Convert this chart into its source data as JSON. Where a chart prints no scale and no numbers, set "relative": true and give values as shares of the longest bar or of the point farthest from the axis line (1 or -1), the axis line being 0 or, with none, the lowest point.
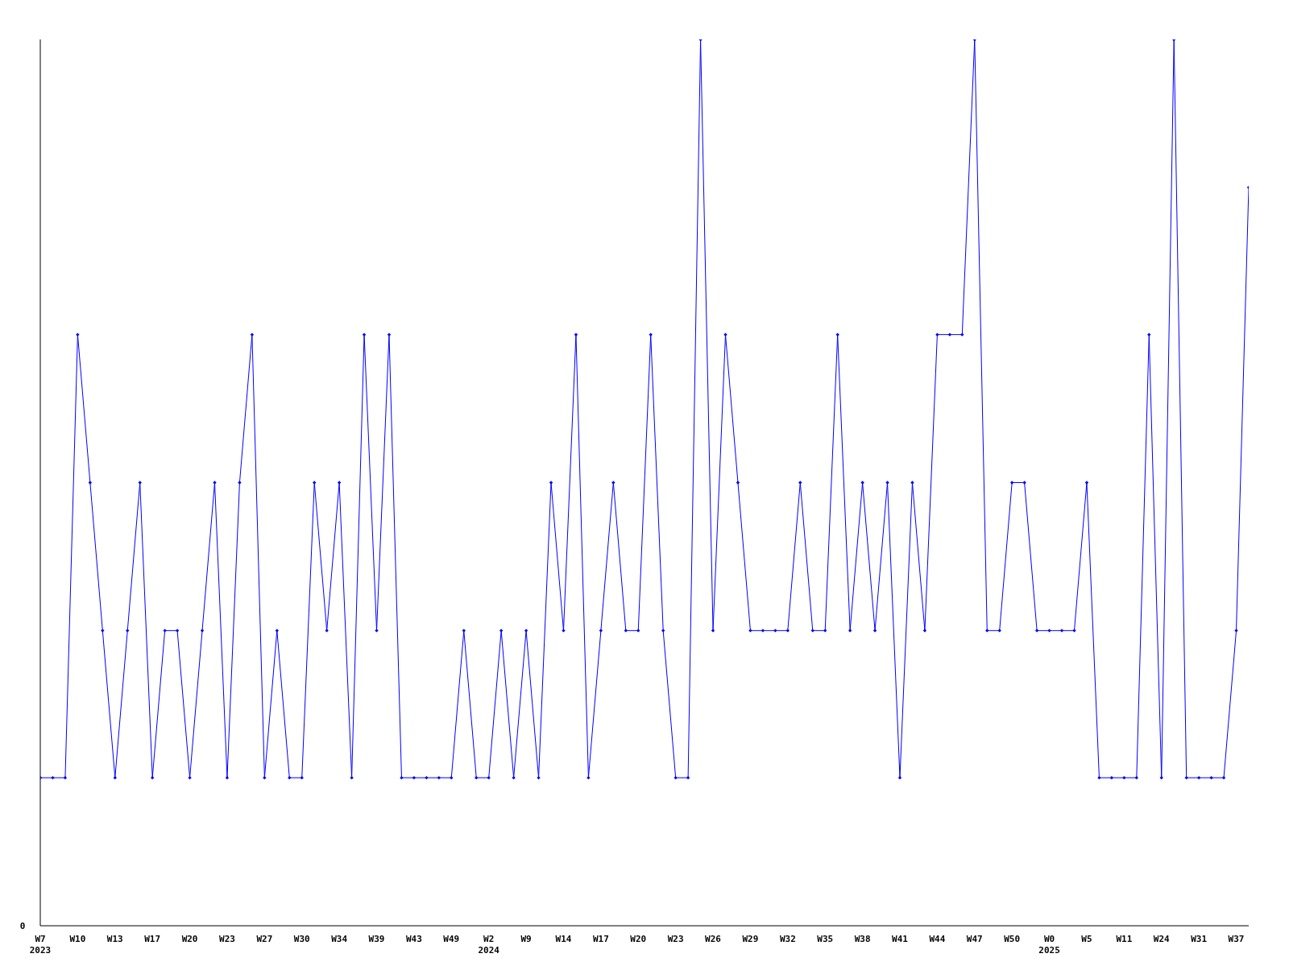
{
  "chart_data": {
    "type": "line",
    "relative": true,
    "annotations": [
      "0"
    ],
    "marker": "diamond",
    "grid": false,
    "legend": false,
    "categories": [
      "W7\n2023",
      null,
      null,
      "W10",
      null,
      null,
      "W13",
      null,
      null,
      "W17",
      null,
      null,
      "W20",
      null,
      null,
      "W23",
      null,
      null,
      "W27",
      null,
      null,
      "W30",
      null,
      null,
      "W34",
      null,
      null,
      "W39",
      null,
      null,
      "W43",
      null,
      null,
      "W49",
      null,
      null,
      "W2\n2024",
      null,
      null,
      "W9",
      null,
      null,
      "W14",
      null,
      null,
      "W17",
      null,
      null,
      "W20",
      null,
      null,
      "W23",
      null,
      null,
      "W26",
      null,
      null,
      "W29",
      null,
      null,
      "W32",
      null,
      null,
      "W35",
      null,
      null,
      "W38",
      null,
      null,
      "W41",
      null,
      null,
      "W44",
      null,
      null,
      "W47",
      null,
      null,
      "W50",
      null,
      null,
      "W0\n2025",
      null,
      null,
      "W5",
      null,
      null,
      "W11",
      null,
      null,
      "W24",
      null,
      null,
      "W31",
      null,
      null,
      "W37",
      null
    ],
    "series": [
      {
        "color": "#0000ff",
        "values": [
          0.167,
          0.167,
          0.167,
          0.667,
          0.5,
          0.333,
          0.167,
          0.333,
          0.5,
          0.167,
          0.333,
          0.333,
          0.167,
          0.333,
          0.5,
          0.167,
          0.5,
          0.667,
          0.167,
          0.333,
          0.167,
          0.167,
          0.5,
          0.333,
          0.5,
          0.167,
          0.667,
          0.333,
          0.667,
          0.167,
          0.167,
          0.167,
          0.167,
          0.167,
          0.333,
          0.167,
          0.167,
          0.333,
          0.167,
          0.333,
          0.167,
          0.5,
          0.333,
          0.667,
          0.167,
          0.333,
          0.5,
          0.333,
          0.333,
          0.667,
          0.333,
          0.167,
          0.167,
          1,
          0.333,
          0.667,
          0.5,
          0.333,
          0.333,
          0.333,
          0.333,
          0.5,
          0.333,
          0.333,
          0.667,
          0.333,
          0.5,
          0.333,
          0.5,
          0.167,
          0.5,
          0.333,
          0.667,
          0.667,
          0.667,
          1,
          0.333,
          0.333,
          0.5,
          0.5,
          0.333,
          0.333,
          0.333,
          0.333,
          0.5,
          0.167,
          0.167,
          0.167,
          0.167,
          0.667,
          0.167,
          1,
          0.167,
          0.167,
          0.167,
          0.167,
          0.333,
          0.833
        ]
      }
    ]
  }
}
